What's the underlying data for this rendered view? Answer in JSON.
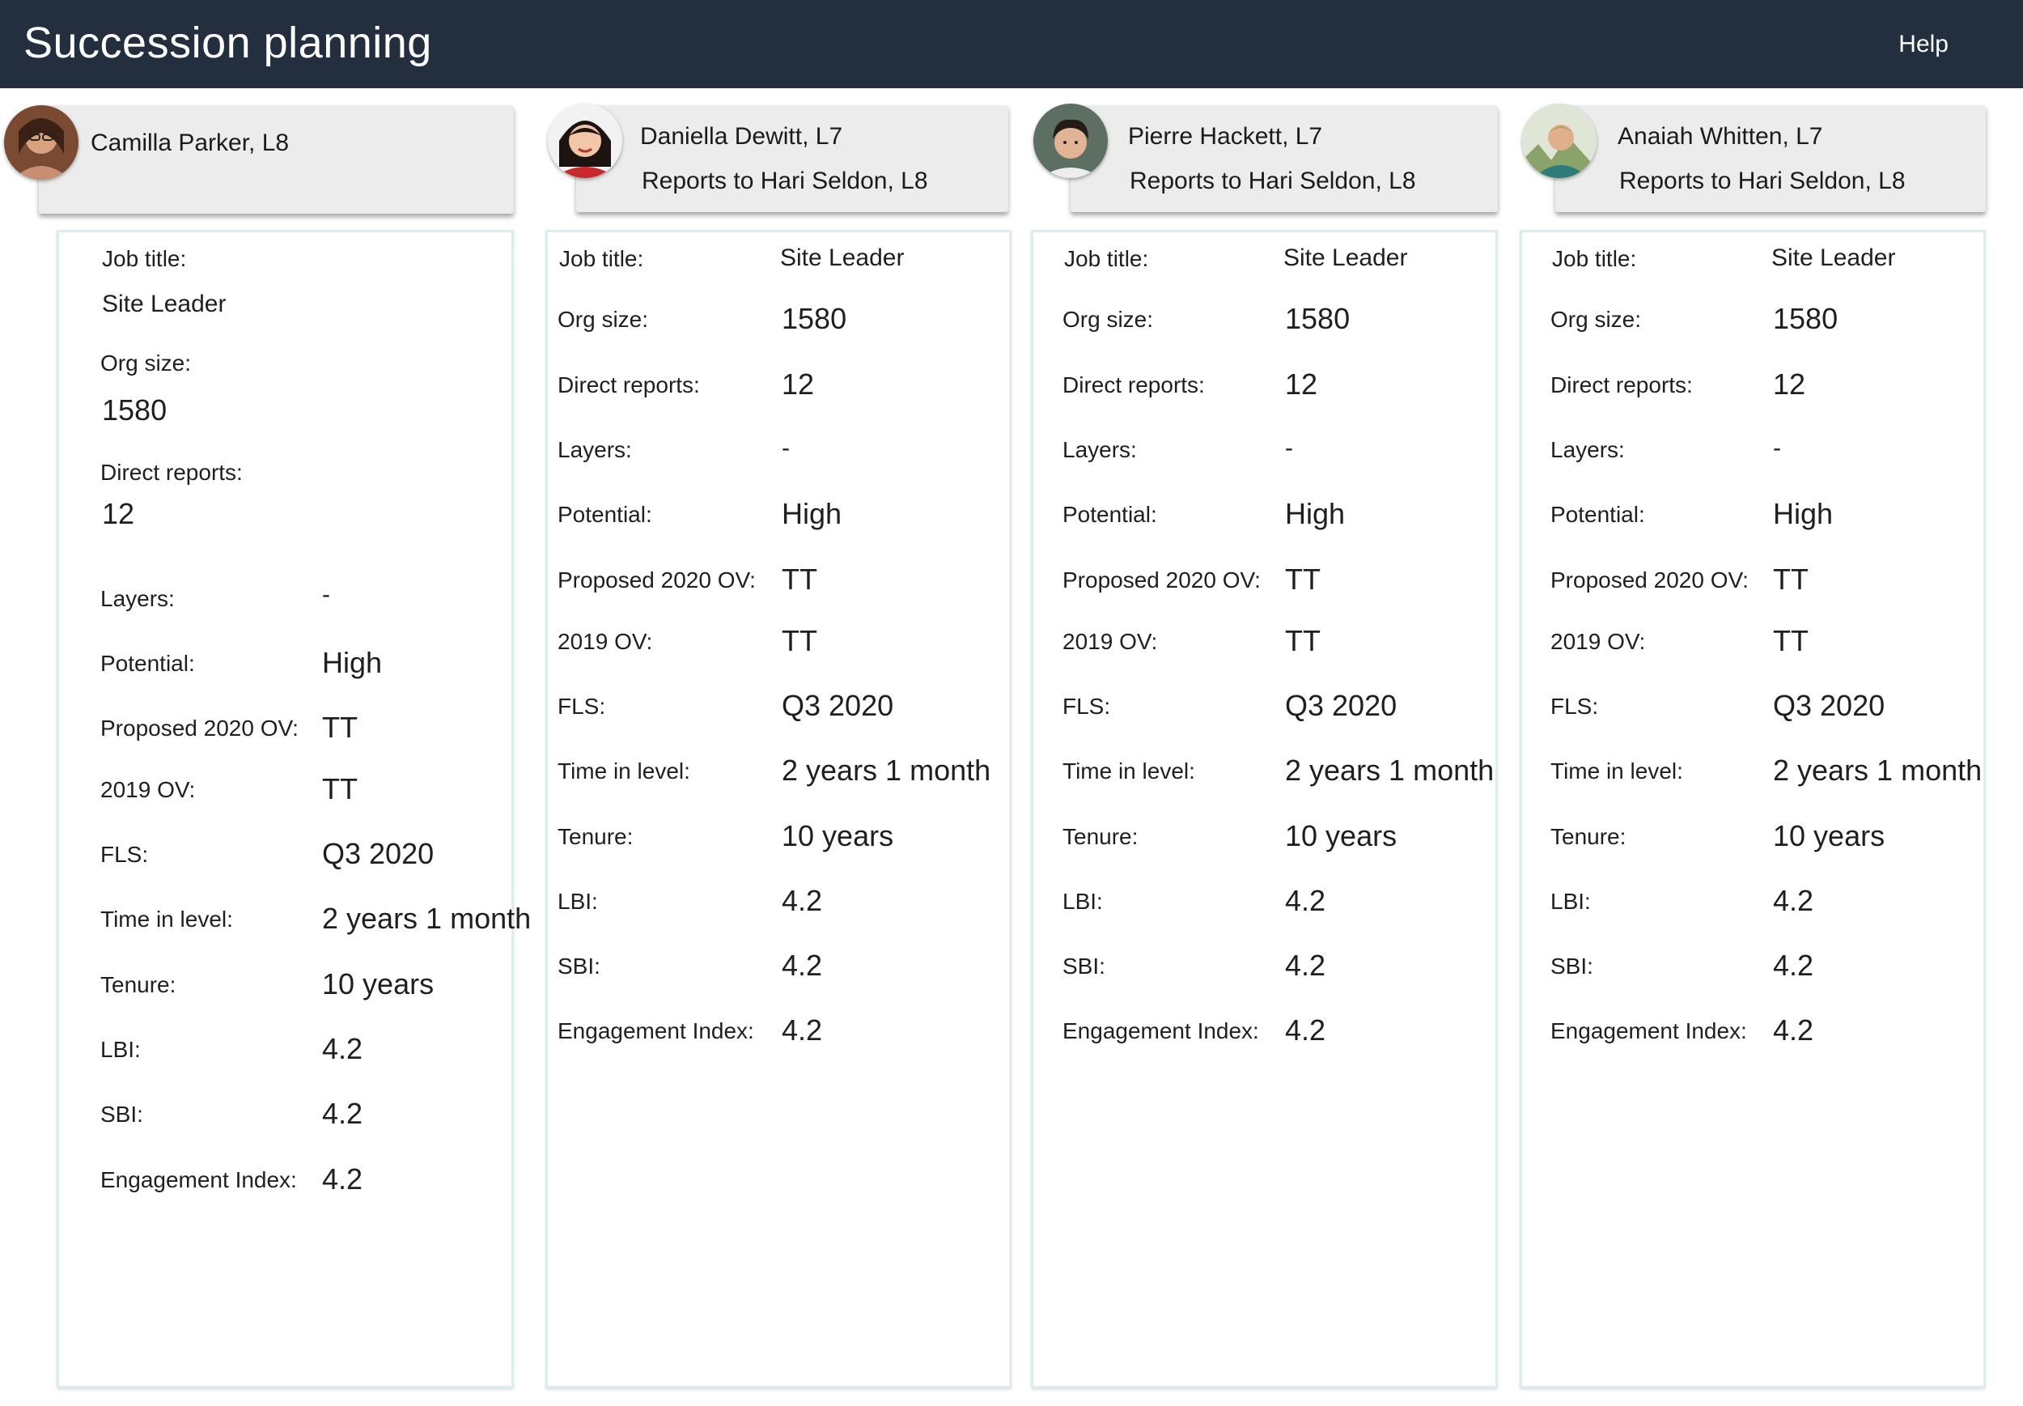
{
  "header": {
    "title": "Succession planning",
    "help_label": "Help"
  },
  "labels": {
    "job_title": "Job title:",
    "org_size": "Org size:",
    "direct_reports": "Direct reports:",
    "layers": "Layers:",
    "potential": "Potential:",
    "proposed_ov": "Proposed 2020 OV:",
    "ov_2019": "2019 OV:",
    "fls": "FLS:",
    "time_in_level": "Time in level:",
    "tenure": "Tenure:",
    "lbi": "LBI:",
    "sbi": "SBI:",
    "engagement": "Engagement Index:"
  },
  "people": [
    {
      "name": "Camilla Parker, L8",
      "reports_to": "",
      "job_title": "Site Leader",
      "org_size": "1580",
      "direct_reports": "12",
      "layers": "-",
      "potential": "High",
      "proposed_ov": "TT",
      "ov_2019": "TT",
      "fls": "Q3 2020",
      "time_in_level": "2 years 1 month",
      "tenure": "10 years",
      "lbi": "4.2",
      "sbi": "4.2",
      "engagement": "4.2",
      "avatar_icon": "person-photo-icon"
    },
    {
      "name": "Daniella Dewitt, L7",
      "reports_to": "Reports to Hari Seldon, L8",
      "job_title": "Site Leader",
      "org_size": "1580",
      "direct_reports": "12",
      "layers": "-",
      "potential": "High",
      "proposed_ov": "TT",
      "ov_2019": "TT",
      "fls": "Q3 2020",
      "time_in_level": "2 years 1 month",
      "tenure": "10 years",
      "lbi": "4.2",
      "sbi": "4.2",
      "engagement": "4.2",
      "avatar_icon": "person-photo-icon"
    },
    {
      "name": "Pierre Hackett, L7",
      "reports_to": "Reports to Hari Seldon, L8",
      "job_title": "Site Leader",
      "org_size": "1580",
      "direct_reports": "12",
      "layers": "-",
      "potential": "High",
      "proposed_ov": "TT",
      "ov_2019": "TT",
      "fls": "Q3 2020",
      "time_in_level": "2 years 1 month",
      "tenure": "10 years",
      "lbi": "4.2",
      "sbi": "4.2",
      "engagement": "4.2",
      "avatar_icon": "person-photo-icon"
    },
    {
      "name": "Anaiah Whitten, L7",
      "reports_to": "Reports to Hari Seldon, L8",
      "job_title": "Site Leader",
      "org_size": "1580",
      "direct_reports": "12",
      "layers": "-",
      "potential": "High",
      "proposed_ov": "TT",
      "ov_2019": "TT",
      "fls": "Q3 2020",
      "time_in_level": "2 years 1 month",
      "tenure": "10 years",
      "lbi": "4.2",
      "sbi": "4.2",
      "engagement": "4.2",
      "avatar_icon": "person-photo-icon"
    }
  ],
  "colors": {
    "header_bg": "#232f3e",
    "card_bg": "#ececec",
    "panel_border": "#e0ebee"
  }
}
